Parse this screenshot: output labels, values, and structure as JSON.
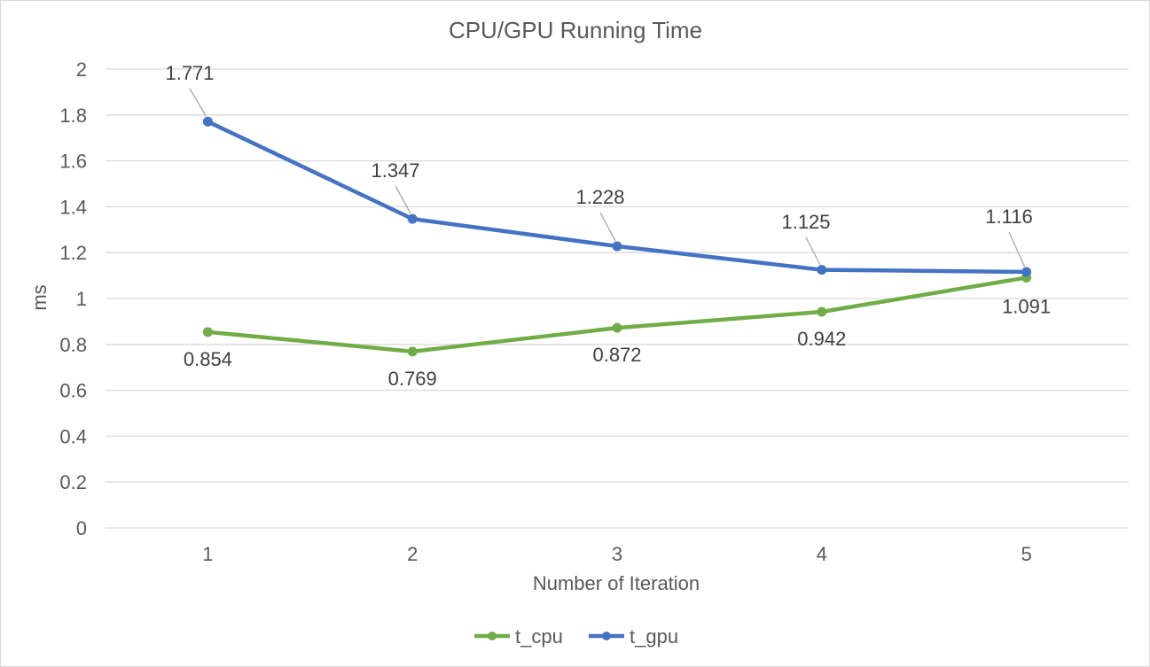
{
  "chart_data": {
    "type": "line",
    "title": "CPU/GPU Running Time",
    "xlabel": "Number of Iteration",
    "ylabel": "ms",
    "categories": [
      "1",
      "2",
      "3",
      "4",
      "5"
    ],
    "ylim": [
      0,
      2
    ],
    "ytick_labels": [
      "0",
      "0.2",
      "0.4",
      "0.6",
      "0.8",
      "1",
      "1.2",
      "1.4",
      "1.6",
      "1.8",
      "2"
    ],
    "grid": true,
    "legend_position": "bottom",
    "series": [
      {
        "name": "t_cpu",
        "color": "#70ad47",
        "values": [
          0.854,
          0.769,
          0.872,
          0.942,
          1.091
        ],
        "labels": [
          "0.854",
          "0.769",
          "0.872",
          "0.942",
          "1.091"
        ]
      },
      {
        "name": "t_gpu",
        "color": "#4472c4",
        "values": [
          1.771,
          1.347,
          1.228,
          1.125,
          1.116
        ],
        "labels": [
          "1.771",
          "1.347",
          "1.228",
          "1.125",
          "1.116"
        ]
      }
    ]
  }
}
